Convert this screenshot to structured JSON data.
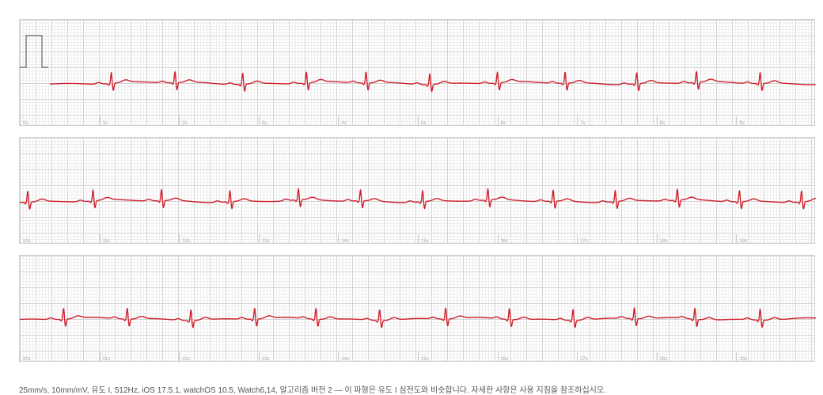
{
  "strips": [
    {
      "ticks": [
        "0s",
        "1s",
        "2s",
        "3s",
        "4s",
        "5s",
        "6s",
        "7s",
        "8s",
        "9s"
      ],
      "has_calibration": true
    },
    {
      "ticks": [
        "10s",
        "11s",
        "12s",
        "13s",
        "14s",
        "15s",
        "16s",
        "17s",
        "18s",
        "19s"
      ],
      "has_calibration": false
    },
    {
      "ticks": [
        "20s",
        "21s",
        "22s",
        "23s",
        "24s",
        "25s",
        "26s",
        "27s",
        "28s",
        "29s"
      ],
      "has_calibration": false
    }
  ],
  "ecg": {
    "color": "#d0202c",
    "beat_times_s": [
      [
        1.15,
        1.95,
        2.8,
        3.6,
        4.35,
        5.15,
        6.0,
        6.85,
        7.75,
        8.5,
        9.3
      ],
      [
        10.1,
        10.92,
        11.78,
        12.64,
        13.5,
        14.28,
        15.06,
        15.88,
        16.7,
        17.48,
        18.26,
        19.04,
        19.82
      ],
      [
        20.55,
        21.35,
        22.15,
        22.95,
        23.72,
        24.52,
        25.35,
        26.15,
        26.95,
        27.72,
        28.48,
        29.3
      ]
    ],
    "signal_start_s": 0.38
  },
  "footer": {
    "text": "25mm/s, 10mm/mV, 유도 I, 512Hz, iOS 17.5.1, watchOS 10.5, Watch6,14, 알고리즘 버전 2 — 이 파형은 유도 I 심전도와 비슷합니다. 자세한 사항은 사용 지침을 참조하십시오."
  }
}
